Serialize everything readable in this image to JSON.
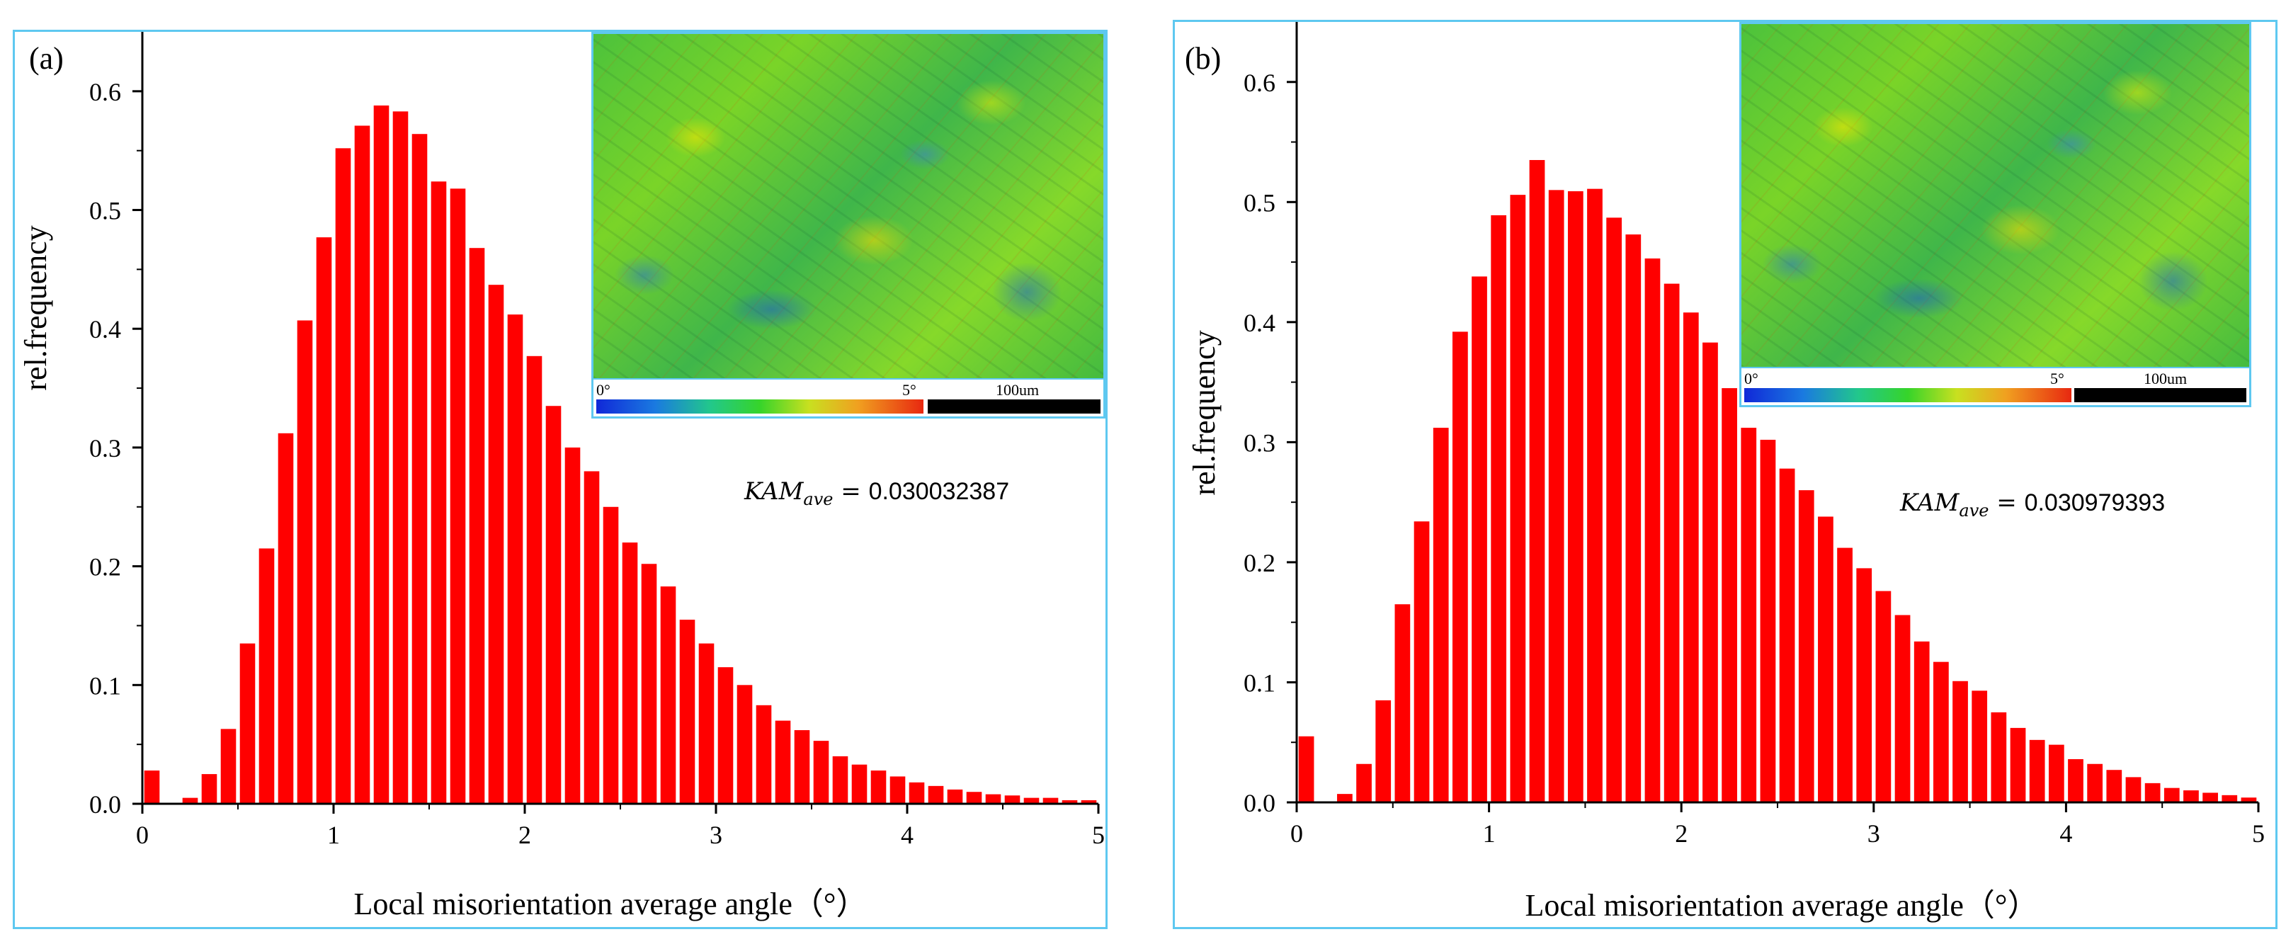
{
  "colors": {
    "bar": "#ff0000",
    "frame": "#5ec8f0",
    "axis": "#000000"
  },
  "chart_data": [
    {
      "type": "bar",
      "panel_label": "(a)",
      "xlabel": "Local misorientation average angle（°）",
      "ylabel": "rel.frequency",
      "xlim": [
        0,
        5
      ],
      "ylim": [
        0,
        0.65
      ],
      "xticks": [
        "0",
        "1",
        "2",
        "3",
        "4",
        "5"
      ],
      "yticks": [
        "0.0",
        "0.1",
        "0.2",
        "0.3",
        "0.4",
        "0.5",
        "0.6"
      ],
      "bin_width": 0.1,
      "bin_centers": [
        0.05,
        0.15,
        0.25,
        0.35,
        0.45,
        0.55,
        0.65,
        0.75,
        0.85,
        0.95,
        1.05,
        1.15,
        1.25,
        1.35,
        1.45,
        1.55,
        1.65,
        1.75,
        1.85,
        1.95,
        2.05,
        2.15,
        2.25,
        2.35,
        2.45,
        2.55,
        2.65,
        2.75,
        2.85,
        2.95,
        3.05,
        3.15,
        3.25,
        3.35,
        3.45,
        3.55,
        3.65,
        3.75,
        3.85,
        3.95,
        4.05,
        4.15,
        4.25,
        4.35,
        4.45,
        4.55,
        4.65,
        4.75,
        4.85,
        4.95
      ],
      "values": [
        0.028,
        0.0,
        0.005,
        0.025,
        0.063,
        0.135,
        0.215,
        0.312,
        0.407,
        0.477,
        0.552,
        0.571,
        0.588,
        0.583,
        0.564,
        0.524,
        0.518,
        0.468,
        0.437,
        0.412,
        0.377,
        0.335,
        0.3,
        0.28,
        0.25,
        0.22,
        0.202,
        0.183,
        0.155,
        0.135,
        0.115,
        0.1,
        0.083,
        0.07,
        0.062,
        0.053,
        0.04,
        0.033,
        0.028,
        0.023,
        0.018,
        0.015,
        0.012,
        0.01,
        0.008,
        0.007,
        0.005,
        0.005,
        0.003,
        0.003
      ],
      "annotation": {
        "main": "KAM",
        "sub": "ave",
        "rest": " = ",
        "value": "0.030032387"
      },
      "inset": {
        "cbar_min": "0°",
        "cbar_max": "5°",
        "scale": "100um"
      }
    },
    {
      "type": "bar",
      "panel_label": "(b)",
      "xlabel": "Local misorientation average angle（°）",
      "ylabel": "rel.frequency",
      "xlim": [
        0,
        5
      ],
      "ylim": [
        0,
        0.65
      ],
      "xticks": [
        "0",
        "1",
        "2",
        "3",
        "4",
        "5"
      ],
      "yticks": [
        "0.0",
        "0.1",
        "0.2",
        "0.3",
        "0.4",
        "0.5",
        "0.6"
      ],
      "bin_width": 0.1,
      "bin_centers": [
        0.05,
        0.15,
        0.25,
        0.35,
        0.45,
        0.55,
        0.65,
        0.75,
        0.85,
        0.95,
        1.05,
        1.15,
        1.25,
        1.35,
        1.45,
        1.55,
        1.65,
        1.75,
        1.85,
        1.95,
        2.05,
        2.15,
        2.25,
        2.35,
        2.45,
        2.55,
        2.65,
        2.75,
        2.85,
        2.95,
        3.05,
        3.15,
        3.25,
        3.35,
        3.45,
        3.55,
        3.65,
        3.75,
        3.85,
        3.95,
        4.05,
        4.15,
        4.25,
        4.35,
        4.45,
        4.55,
        4.65,
        4.75,
        4.85,
        4.95
      ],
      "values": [
        0.055,
        0.0,
        0.007,
        0.032,
        0.085,
        0.165,
        0.234,
        0.312,
        0.392,
        0.438,
        0.489,
        0.506,
        0.535,
        0.51,
        0.509,
        0.511,
        0.487,
        0.473,
        0.453,
        0.432,
        0.408,
        0.383,
        0.345,
        0.312,
        0.302,
        0.278,
        0.26,
        0.238,
        0.212,
        0.195,
        0.176,
        0.156,
        0.134,
        0.117,
        0.101,
        0.093,
        0.075,
        0.062,
        0.052,
        0.048,
        0.036,
        0.032,
        0.027,
        0.021,
        0.016,
        0.012,
        0.01,
        0.008,
        0.006,
        0.004
      ],
      "annotation": {
        "main": "KAM",
        "sub": "ave",
        "rest": " = ",
        "value": "0.030979393"
      },
      "inset": {
        "cbar_min": "0°",
        "cbar_max": "5°",
        "scale": "100um"
      }
    }
  ]
}
